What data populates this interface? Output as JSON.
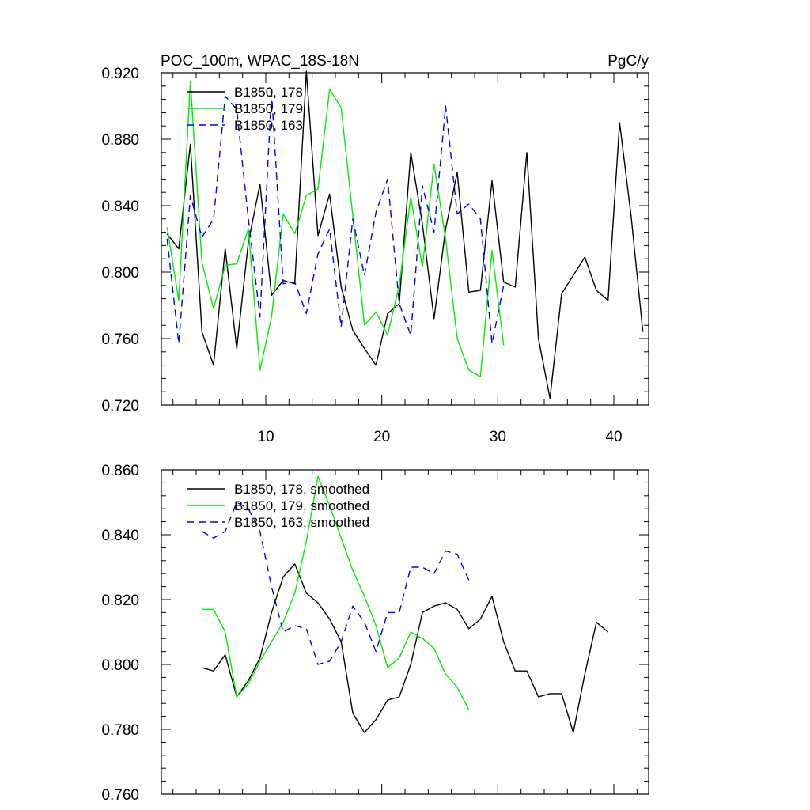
{
  "chart_data": [
    {
      "type": "line",
      "title_left": "POC_100m, WPAC_18S-18N",
      "title_right": "PgC/y",
      "xlabel": "",
      "ylabel": "",
      "xlim": [
        1,
        43
      ],
      "ylim": [
        0.72,
        0.92
      ],
      "x_ticks": [
        10,
        20,
        30,
        40
      ],
      "x_tick_labels": [
        "10",
        "20",
        "30",
        "40"
      ],
      "y_ticks": [
        0.72,
        0.76,
        0.8,
        0.84,
        0.88,
        0.92
      ],
      "y_tick_labels": [
        "0.720",
        "0.760",
        "0.800",
        "0.840",
        "0.880",
        "0.920"
      ],
      "legend_position": "top-left",
      "series": [
        {
          "name": "B1850, 178",
          "color": "#000000",
          "dash": "solid",
          "x": [
            1.5,
            2.5,
            3.5,
            4.5,
            5.5,
            6.5,
            7.5,
            8.5,
            9.5,
            10.5,
            11.5,
            12.5,
            13.5,
            14.5,
            15.5,
            16.5,
            17.5,
            18.5,
            19.5,
            20.5,
            21.5,
            22.5,
            23.5,
            24.5,
            25.5,
            26.5,
            27.5,
            28.5,
            29.5,
            30.5,
            31.5,
            32.5,
            33.5,
            34.5,
            35.5,
            36.5,
            37.5,
            38.5,
            39.5,
            40.5,
            41.5,
            42.5
          ],
          "values": [
            0.823,
            0.814,
            0.877,
            0.764,
            0.744,
            0.814,
            0.754,
            0.818,
            0.853,
            0.786,
            0.795,
            0.793,
            0.921,
            0.822,
            0.847,
            0.791,
            0.765,
            0.754,
            0.744,
            0.775,
            0.781,
            0.872,
            0.829,
            0.772,
            0.826,
            0.86,
            0.788,
            0.789,
            0.855,
            0.794,
            0.791,
            0.872,
            0.76,
            0.724,
            0.787,
            0.798,
            0.809,
            0.789,
            0.783,
            0.89,
            0.833,
            0.764
          ]
        },
        {
          "name": "B1850, 179",
          "color": "#00ee00",
          "dash": "solid",
          "x": [
            1.5,
            2.5,
            3.5,
            4.5,
            5.5,
            6.5,
            7.5,
            8.5,
            9.5,
            10.5,
            11.5,
            12.5,
            13.5,
            14.5,
            15.5,
            16.5,
            17.5,
            18.5,
            19.5,
            20.5,
            21.5,
            22.5,
            23.5,
            24.5,
            25.5,
            26.5,
            27.5,
            28.5,
            29.5,
            30.5
          ],
          "values": [
            0.827,
            0.783,
            0.915,
            0.806,
            0.778,
            0.804,
            0.805,
            0.826,
            0.741,
            0.773,
            0.835,
            0.823,
            0.846,
            0.85,
            0.91,
            0.899,
            0.834,
            0.768,
            0.776,
            0.762,
            0.792,
            0.845,
            0.803,
            0.865,
            0.82,
            0.76,
            0.741,
            0.737,
            0.813,
            0.756
          ]
        },
        {
          "name": "B1850, 163",
          "color": "#0000ee",
          "dash": "dashed",
          "x": [
            1.5,
            2.5,
            3.5,
            4.5,
            5.5,
            6.5,
            7.5,
            8.5,
            9.5,
            10.5,
            11.5,
            12.5,
            13.5,
            14.5,
            15.5,
            16.5,
            17.5,
            18.5,
            19.5,
            20.5,
            21.5,
            22.5,
            23.5,
            24.5,
            25.5,
            26.5,
            27.5,
            28.5,
            29.5,
            30.5
          ],
          "values": [
            0.82,
            0.757,
            0.846,
            0.821,
            0.832,
            0.906,
            0.898,
            0.832,
            0.773,
            0.908,
            0.793,
            0.794,
            0.775,
            0.811,
            0.826,
            0.767,
            0.832,
            0.798,
            0.836,
            0.856,
            0.781,
            0.762,
            0.852,
            0.824,
            0.9,
            0.835,
            0.841,
            0.832,
            0.757,
            0.792
          ]
        }
      ]
    },
    {
      "type": "line",
      "xlim": [
        1,
        43
      ],
      "ylim": [
        0.76,
        0.86
      ],
      "x_ticks": [
        10,
        20,
        30,
        40
      ],
      "y_ticks": [
        0.76,
        0.78,
        0.8,
        0.82,
        0.84,
        0.86
      ],
      "y_tick_labels": [
        "0.760",
        "0.780",
        "0.800",
        "0.820",
        "0.840",
        "0.860"
      ],
      "legend_position": "top-left",
      "series": [
        {
          "name": "B1850, 178, smoothed",
          "color": "#000000",
          "dash": "solid",
          "x": [
            4.5,
            5.5,
            6.5,
            7.5,
            8.5,
            9.5,
            10.5,
            11.5,
            12.5,
            13.5,
            14.5,
            15.5,
            16.5,
            17.5,
            18.5,
            19.5,
            20.5,
            21.5,
            22.5,
            23.5,
            24.5,
            25.5,
            26.5,
            27.5,
            28.5,
            29.5,
            30.5,
            31.5,
            32.5,
            33.5,
            34.5,
            35.5,
            36.5,
            37.5,
            38.5,
            39.5
          ],
          "values": [
            0.799,
            0.798,
            0.803,
            0.79,
            0.795,
            0.802,
            0.816,
            0.827,
            0.831,
            0.822,
            0.819,
            0.814,
            0.807,
            0.785,
            0.779,
            0.783,
            0.789,
            0.79,
            0.8,
            0.816,
            0.818,
            0.819,
            0.817,
            0.811,
            0.814,
            0.821,
            0.807,
            0.798,
            0.798,
            0.79,
            0.791,
            0.791,
            0.779,
            0.797,
            0.813,
            0.81
          ]
        },
        {
          "name": "B1850, 179, smoothed",
          "color": "#00ee00",
          "dash": "solid",
          "x": [
            4.5,
            5.5,
            6.5,
            7.5,
            8.5,
            9.5,
            10.5,
            11.5,
            12.5,
            13.5,
            14.5,
            15.5,
            16.5,
            17.5,
            18.5,
            19.5,
            20.5,
            21.5,
            22.5,
            23.5,
            24.5,
            25.5,
            26.5,
            27.5
          ],
          "values": [
            0.817,
            0.817,
            0.81,
            0.79,
            0.794,
            0.801,
            0.807,
            0.813,
            0.822,
            0.838,
            0.858,
            0.849,
            0.839,
            0.829,
            0.821,
            0.812,
            0.799,
            0.802,
            0.81,
            0.808,
            0.805,
            0.797,
            0.793,
            0.786
          ]
        },
        {
          "name": "B1850, 163, smoothed",
          "color": "#0000ee",
          "dash": "dashed",
          "x": [
            4.5,
            5.5,
            6.5,
            7.5,
            8.5,
            9.5,
            10.5,
            11.5,
            12.5,
            13.5,
            14.5,
            15.5,
            16.5,
            17.5,
            18.5,
            19.5,
            20.5,
            21.5,
            22.5,
            23.5,
            24.5,
            25.5,
            26.5,
            27.5
          ],
          "values": [
            0.841,
            0.839,
            0.841,
            0.85,
            0.848,
            0.841,
            0.824,
            0.81,
            0.812,
            0.811,
            0.8,
            0.801,
            0.807,
            0.818,
            0.813,
            0.804,
            0.816,
            0.816,
            0.83,
            0.83,
            0.828,
            0.835,
            0.834,
            0.826
          ]
        }
      ]
    }
  ]
}
